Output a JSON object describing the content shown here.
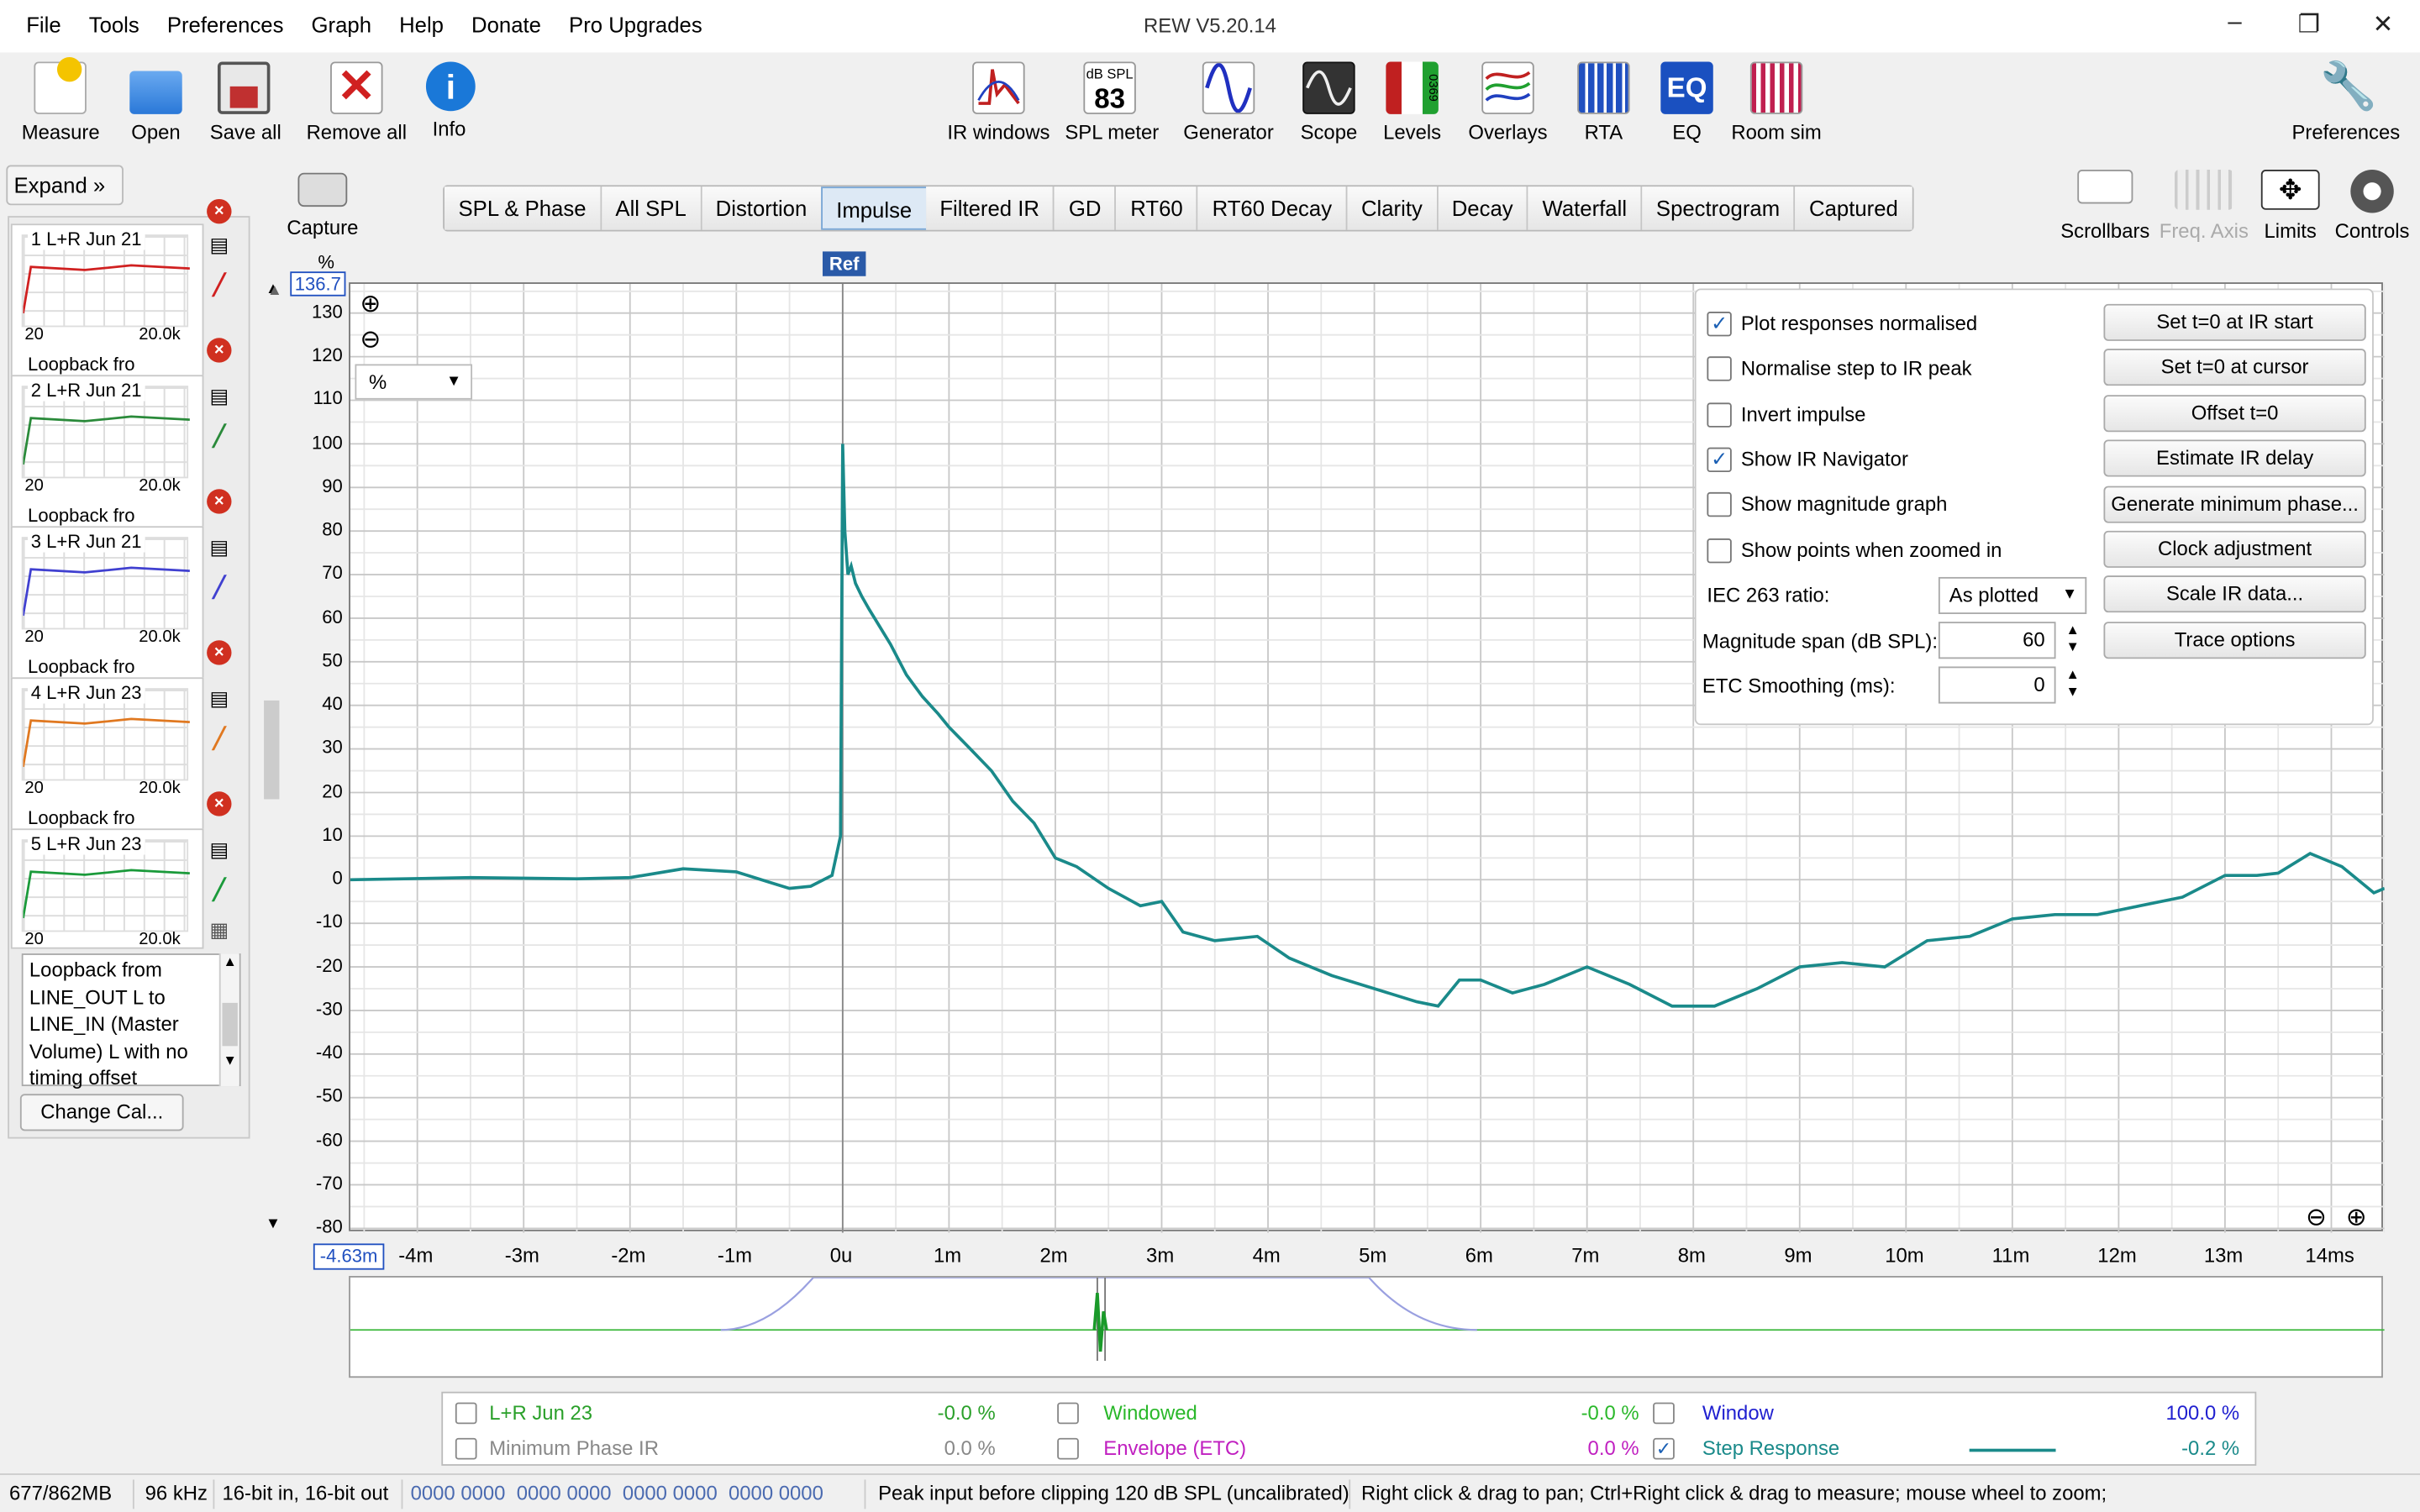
{
  "window": {
    "title": "REW V5.20.14",
    "menu": [
      "File",
      "Tools",
      "Preferences",
      "Graph",
      "Help",
      "Donate",
      "Pro Upgrades"
    ],
    "minimize": "–",
    "restore": "❐",
    "close": "✕"
  },
  "toolbar": {
    "measure": "Measure",
    "open": "Open",
    "save_all": "Save all",
    "remove_all": "Remove all",
    "info": "Info",
    "ir_windows": "IR windows",
    "spl_meter": "SPL meter",
    "spl_badge_top": "dB SPL",
    "spl_badge_value": "83",
    "generator": "Generator",
    "scope": "Scope",
    "levels": "Levels",
    "levels_digits": "0369",
    "overlays": "Overlays",
    "rta": "RTA",
    "eq": "EQ",
    "eq_glyph": "EQ",
    "room_sim": "Room sim",
    "preferences": "Preferences",
    "capture": "Capture",
    "scrollbars": "Scrollbars",
    "freq_axis": "Freq. Axis",
    "limits": "Limits",
    "controls": "Controls"
  },
  "tabs": [
    "SPL & Phase",
    "All SPL",
    "Distortion",
    "Impulse",
    "Filtered IR",
    "GD",
    "RT60",
    "RT60 Decay",
    "Clarity",
    "Decay",
    "Waterfall",
    "Spectrogram",
    "Captured"
  ],
  "active_tab": "Impulse",
  "sidebar": {
    "expand": "Expand",
    "measurements": [
      {
        "name": "1 L+R Jun 21",
        "label": "Loopback fro",
        "ax_start": "20",
        "ax_end": "20.0k",
        "color": "#d02020"
      },
      {
        "name": "2 L+R Jun 21",
        "label": "Loopback fro",
        "ax_start": "20",
        "ax_end": "20.0k",
        "color": "#2a8a3a"
      },
      {
        "name": "3 L+R Jun 21",
        "label": "Loopback fro",
        "ax_start": "20",
        "ax_end": "20.0k",
        "color": "#4040d0"
      },
      {
        "name": "4 L+R Jun 23",
        "label": "Loopback fro",
        "ax_start": "20",
        "ax_end": "20.0k",
        "color": "#e07820"
      },
      {
        "name": "5 L+R Jun 23",
        "label": "",
        "ax_start": "20",
        "ax_end": "20.0k",
        "color": "#1a9a3a"
      }
    ],
    "notes": "Loopback from LINE_OUT L to LINE_IN (Master Volume) L with no timing offset",
    "change_cal": "Change Cal..."
  },
  "graph": {
    "y_unit": "%",
    "y_top_value": "136.7",
    "x_start_value": "-4.63m",
    "ref_label": "Ref",
    "unit_select": "%",
    "y_ticks": [
      "130",
      "120",
      "110",
      "100",
      "90",
      "80",
      "70",
      "60",
      "50",
      "40",
      "30",
      "20",
      "10",
      "0",
      "-10",
      "-20",
      "-30",
      "-40",
      "-50",
      "-60",
      "-70",
      "-80"
    ],
    "x_ticks": [
      "-4m",
      "-3m",
      "-2m",
      "-1m",
      "0u",
      "1m",
      "2m",
      "3m",
      "4m",
      "5m",
      "6m",
      "7m",
      "8m",
      "9m",
      "10m",
      "11m",
      "12m",
      "13m",
      "14ms"
    ]
  },
  "controls": {
    "checks": [
      {
        "label": "Plot responses normalised",
        "checked": true
      },
      {
        "label": "Normalise step to IR peak",
        "checked": false
      },
      {
        "label": "Invert impulse",
        "checked": false
      },
      {
        "label": "Show IR Navigator",
        "checked": true
      },
      {
        "label": "Show magnitude graph",
        "checked": false
      },
      {
        "label": "Show points when zoomed in",
        "checked": false
      }
    ],
    "buttons": [
      "Set t=0 at IR start",
      "Set t=0 at cursor",
      "Offset t=0",
      "Estimate IR delay",
      "Generate minimum phase...",
      "Clock adjustment",
      "Scale IR data...",
      "Trace options"
    ],
    "iec_label": "IEC 263 ratio:",
    "iec_value": "As plotted",
    "mag_span_label": "Magnitude span (dB SPL):",
    "mag_span_value": "60",
    "etc_label": "ETC Smoothing (ms):",
    "etc_value": "0"
  },
  "legend": [
    {
      "label": "L+R Jun 23",
      "value": "-0.0 %",
      "checked": false,
      "color": "#2aa02a"
    },
    {
      "label": "Windowed",
      "value": "-0.0 %",
      "checked": false,
      "color": "#2ab82a"
    },
    {
      "label": "Window",
      "value": "100.0 %",
      "checked": false,
      "color": "#2020d0"
    },
    {
      "label": "Minimum Phase IR",
      "value": "0.0 %",
      "checked": false,
      "color": "#888888"
    },
    {
      "label": "Envelope (ETC)",
      "value": "0.0 %",
      "checked": false,
      "color": "#c020c0"
    },
    {
      "label": "Step Response",
      "value": "-0.2 %",
      "checked": true,
      "color": "#1a8a8a"
    }
  ],
  "status": {
    "memory": "677/862MB",
    "rate": "96 kHz",
    "bits": "16-bit in, 16-bit out",
    "meter": "0000 0000  0000 0000  0000 0000  0000 0000",
    "peak": "Peak input before clipping 120 dB SPL (uncalibrated)",
    "hint": "Right click & drag to pan; Ctrl+Right click & drag to measure; mouse wheel to zoom;"
  },
  "chart_data": {
    "type": "line",
    "title": "",
    "xlabel": "",
    "ylabel": "%",
    "xlim": [
      -4.63,
      14.5
    ],
    "ylim": [
      -81,
      136.7
    ],
    "series": [
      {
        "name": "Step Response",
        "color": "#1a8a8a",
        "x": [
          -4.63,
          -3.5,
          -2.5,
          -2,
          -1.5,
          -1,
          -0.7,
          -0.5,
          -0.3,
          -0.1,
          -0.02,
          0.0,
          0.02,
          0.05,
          0.08,
          0.12,
          0.18,
          0.25,
          0.35,
          0.45,
          0.6,
          0.75,
          0.9,
          1.0,
          1.2,
          1.4,
          1.6,
          1.8,
          2.0,
          2.2,
          2.5,
          2.8,
          3.0,
          3.2,
          3.5,
          3.9,
          4.2,
          4.6,
          5.0,
          5.4,
          5.6,
          5.8,
          6.0,
          6.3,
          6.6,
          7.0,
          7.4,
          7.8,
          8.2,
          8.6,
          9.0,
          9.4,
          9.8,
          10.2,
          10.6,
          11.0,
          11.4,
          11.8,
          12.2,
          12.6,
          13.0,
          13.3,
          13.5,
          13.8,
          14.1,
          14.4,
          14.5
        ],
        "y": [
          0,
          0.5,
          0.2,
          0.5,
          2.5,
          1.8,
          -0.5,
          -2,
          -1.5,
          1,
          10,
          100,
          80,
          70,
          72,
          68,
          65,
          62,
          58,
          54,
          47,
          42,
          38,
          35,
          30,
          25,
          18,
          13,
          5,
          3,
          -2,
          -6,
          -5,
          -12,
          -14,
          -13,
          -18,
          -22,
          -25,
          -28,
          -29,
          -23,
          -23,
          -26,
          -24,
          -20,
          -24,
          -29,
          -29,
          -25,
          -20,
          -19,
          -20,
          -14,
          -13,
          -9,
          -8,
          -8,
          -6,
          -4,
          1,
          1,
          1.5,
          6,
          3,
          -3,
          -2
        ]
      }
    ]
  }
}
